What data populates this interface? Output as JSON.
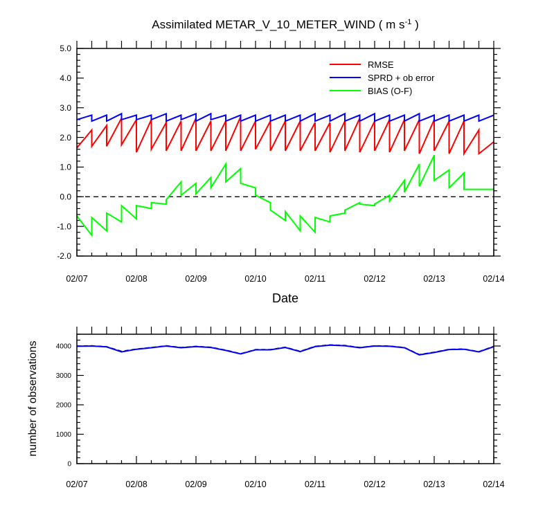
{
  "chart_data": [
    {
      "type": "line",
      "title": "Assimilated METAR_V_10_METER_WIND",
      "title_units": "( m s",
      "title_units_sup": "-1",
      "title_units_end": " )",
      "xlabel": "Date",
      "ylabel": "",
      "ylim": [
        -2.0,
        5.0
      ],
      "yticks": [
        -2.0,
        -1.0,
        0.0,
        1.0,
        2.0,
        3.0,
        4.0,
        5.0
      ],
      "ytick_labels": [
        "-2.0",
        "-1.0",
        "0.0",
        "1.0",
        "2.0",
        "3.0",
        "4.0",
        "5.0"
      ],
      "xlim": [
        0,
        7
      ],
      "xtick_labels": [
        "02/07",
        "02/08",
        "02/09",
        "02/10",
        "02/11",
        "02/12",
        "02/13",
        "02/14"
      ],
      "zero_line": true,
      "legend_position": "top-right",
      "series": [
        {
          "name": "RMSE",
          "color": "#ff0000",
          "x": [
            0.0,
            0.25,
            0.25,
            0.5,
            0.5,
            0.75,
            0.75,
            1.0,
            1.0,
            1.25,
            1.25,
            1.5,
            1.5,
            1.75,
            1.75,
            2.0,
            2.0,
            2.25,
            2.25,
            2.5,
            2.5,
            2.75,
            2.75,
            3.0,
            3.0,
            3.25,
            3.25,
            3.5,
            3.5,
            3.75,
            3.75,
            4.0,
            4.0,
            4.25,
            4.25,
            4.5,
            4.5,
            4.75,
            4.75,
            5.0,
            5.0,
            5.25,
            5.25,
            5.5,
            5.5,
            5.75,
            5.75,
            6.0,
            6.0,
            6.25,
            6.25,
            6.5,
            6.5,
            6.75,
            6.75,
            7.0
          ],
          "values": [
            1.65,
            2.25,
            1.7,
            2.4,
            1.7,
            2.65,
            1.75,
            2.6,
            1.5,
            2.6,
            1.6,
            2.5,
            1.55,
            2.55,
            1.55,
            2.65,
            1.55,
            2.55,
            1.55,
            2.55,
            1.55,
            2.7,
            1.55,
            2.55,
            1.6,
            2.55,
            1.55,
            2.55,
            1.55,
            2.55,
            1.55,
            2.5,
            1.55,
            2.5,
            1.5,
            2.55,
            1.55,
            2.65,
            1.5,
            2.55,
            1.55,
            2.6,
            1.5,
            2.6,
            1.55,
            2.6,
            1.45,
            2.6,
            1.55,
            2.55,
            1.45,
            2.55,
            1.45,
            2.25,
            1.45,
            1.85
          ]
        },
        {
          "name": "SPRD + ob error",
          "color": "#0000ff",
          "x": [
            0.0,
            0.25,
            0.25,
            0.5,
            0.5,
            0.75,
            0.75,
            1.0,
            1.0,
            1.25,
            1.25,
            1.5,
            1.5,
            1.75,
            1.75,
            2.0,
            2.0,
            2.25,
            2.25,
            2.5,
            2.5,
            2.75,
            2.75,
            3.0,
            3.0,
            3.25,
            3.25,
            3.5,
            3.5,
            3.75,
            3.75,
            4.0,
            4.0,
            4.25,
            4.25,
            4.5,
            4.5,
            4.75,
            4.75,
            5.0,
            5.0,
            5.25,
            5.25,
            5.5,
            5.5,
            5.75,
            5.75,
            6.0,
            6.0,
            6.25,
            6.25,
            6.5,
            6.5,
            6.75,
            6.75,
            7.0
          ],
          "values": [
            2.6,
            2.75,
            2.55,
            2.75,
            2.55,
            2.8,
            2.6,
            2.75,
            2.6,
            2.75,
            2.6,
            2.8,
            2.55,
            2.75,
            2.6,
            2.8,
            2.55,
            2.8,
            2.6,
            2.75,
            2.55,
            2.75,
            2.55,
            2.75,
            2.55,
            2.75,
            2.55,
            2.75,
            2.55,
            2.75,
            2.55,
            2.8,
            2.55,
            2.75,
            2.55,
            2.8,
            2.55,
            2.75,
            2.55,
            2.8,
            2.55,
            2.75,
            2.55,
            2.75,
            2.55,
            2.8,
            2.55,
            2.75,
            2.55,
            2.75,
            2.55,
            2.75,
            2.55,
            2.75,
            2.55,
            2.75
          ]
        },
        {
          "name": "BIAS (O-F)",
          "color": "#00ff00",
          "x": [
            0.0,
            0.25,
            0.25,
            0.5,
            0.5,
            0.75,
            0.75,
            1.0,
            1.0,
            1.25,
            1.25,
            1.5,
            1.5,
            1.75,
            1.75,
            2.0,
            2.0,
            2.25,
            2.25,
            2.5,
            2.5,
            2.75,
            2.75,
            3.0,
            3.0,
            3.25,
            3.25,
            3.5,
            3.5,
            3.75,
            3.75,
            4.0,
            4.0,
            4.25,
            4.25,
            4.5,
            4.5,
            4.75,
            4.75,
            5.0,
            5.0,
            5.25,
            5.25,
            5.5,
            5.5,
            5.75,
            5.75,
            6.0,
            6.0,
            6.25,
            6.25,
            6.5,
            6.5,
            6.75,
            6.75,
            7.0
          ],
          "values": [
            -0.65,
            -1.3,
            -0.7,
            -1.15,
            -0.55,
            -0.85,
            -0.3,
            -0.75,
            -0.3,
            -0.4,
            -0.2,
            -0.25,
            -0.1,
            0.5,
            0.05,
            0.45,
            0.1,
            0.65,
            0.3,
            1.1,
            0.5,
            0.95,
            0.45,
            0.3,
            0.05,
            -0.2,
            -0.45,
            -0.8,
            -0.5,
            -1.15,
            -0.65,
            -1.2,
            -0.7,
            -0.85,
            -0.65,
            -0.55,
            -0.45,
            -0.2,
            -0.25,
            -0.3,
            -0.25,
            0.05,
            -0.15,
            0.55,
            0.15,
            1.1,
            0.35,
            1.4,
            0.55,
            0.9,
            0.3,
            0.8,
            0.25,
            0.25,
            0.25,
            0.25
          ]
        }
      ]
    },
    {
      "type": "line",
      "title": "",
      "xlabel": "",
      "ylabel": "number of observations",
      "ylim": [
        0,
        4400
      ],
      "yticks": [
        0,
        1000,
        2000,
        3000,
        4000
      ],
      "ytick_labels": [
        "0",
        "1000",
        "2000",
        "3000",
        "4000"
      ],
      "xlim": [
        0,
        7
      ],
      "xtick_labels": [
        "02/07",
        "02/08",
        "02/09",
        "02/10",
        "02/11",
        "02/12",
        "02/13",
        "02/14"
      ],
      "series": [
        {
          "color": "#000000",
          "dashed": true,
          "x": [
            0.0,
            0.25,
            0.5,
            0.75,
            1.0,
            1.25,
            1.5,
            1.75,
            2.0,
            2.25,
            2.5,
            2.75,
            3.0,
            3.25,
            3.5,
            3.75,
            4.0,
            4.25,
            4.5,
            4.75,
            5.0,
            5.25,
            5.5,
            5.75,
            6.0,
            6.25,
            6.5,
            6.75,
            7.0
          ],
          "values": [
            4000,
            4010,
            3980,
            3820,
            3900,
            3950,
            4010,
            3950,
            3990,
            3960,
            3860,
            3740,
            3880,
            3880,
            3960,
            3820,
            3990,
            4040,
            4020,
            3950,
            4010,
            4000,
            3950,
            3710,
            3790,
            3890,
            3900,
            3810,
            3990
          ]
        },
        {
          "color": "#0000ff",
          "x": [
            0.0,
            0.25,
            0.5,
            0.75,
            1.0,
            1.25,
            1.5,
            1.75,
            2.0,
            2.25,
            2.5,
            2.75,
            3.0,
            3.25,
            3.5,
            3.75,
            4.0,
            4.25,
            4.5,
            4.75,
            5.0,
            5.25,
            5.5,
            5.75,
            6.0,
            6.25,
            6.5,
            6.75,
            7.0
          ],
          "values": [
            3990,
            4000,
            3970,
            3800,
            3890,
            3940,
            4000,
            3940,
            3980,
            3950,
            3850,
            3730,
            3870,
            3870,
            3950,
            3810,
            3980,
            4030,
            4010,
            3940,
            4000,
            3990,
            3940,
            3700,
            3780,
            3880,
            3890,
            3800,
            3980
          ]
        }
      ]
    }
  ]
}
